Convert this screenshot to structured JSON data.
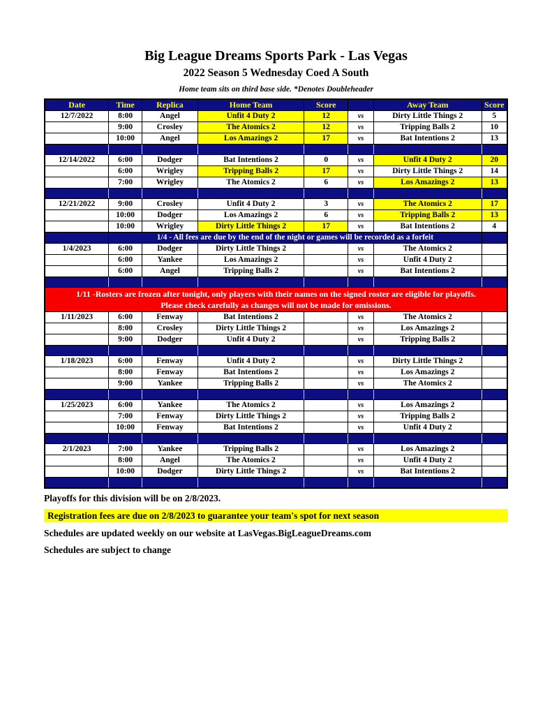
{
  "page": {
    "title": "Big League Dreams Sports Park - Las Vegas",
    "subtitle": "2022 Season 5 Wednesday Coed A South",
    "note": "Home team sits on third base side.  *Denotes Doubleheader"
  },
  "colors": {
    "navy": "#0d0d84",
    "highlight_yellow": "#ffff00",
    "banner_red": "#f80000",
    "header_text": "#ffff00",
    "note_text": "#ffffff"
  },
  "table": {
    "headers": [
      "Date",
      "Time",
      "Replica",
      "Home Team",
      "Score",
      "",
      "Away Team",
      "Score"
    ],
    "vs_label": "vs",
    "rows": [
      {
        "type": "game",
        "date": "12/7/2022",
        "time": "8:00",
        "replica": "Angel",
        "home": "Unfit 4 Duty 2",
        "hs": "12",
        "away": "Dirty Little Things 2",
        "as": "5",
        "hw": true,
        "aw": false
      },
      {
        "type": "game",
        "date": "",
        "time": "9:00",
        "replica": "Crosley",
        "home": "The Atomics 2",
        "hs": "12",
        "away": "Tripping Balls 2",
        "as": "10",
        "hw": true,
        "aw": false
      },
      {
        "type": "game",
        "date": "",
        "time": "10:00",
        "replica": "Angel",
        "home": "Los Amazings 2",
        "hs": "17",
        "away": "Bat Intentions 2",
        "as": "13",
        "hw": true,
        "aw": false
      },
      {
        "type": "separator"
      },
      {
        "type": "game",
        "date": "12/14/2022",
        "time": "6:00",
        "replica": "Dodger",
        "home": "Bat Intentions 2",
        "hs": "0",
        "away": "Unfit 4 Duty 2",
        "as": "20",
        "hw": false,
        "aw": true
      },
      {
        "type": "game",
        "date": "",
        "time": "6:00",
        "replica": "Wrigley",
        "home": "Tripping Balls 2",
        "hs": "17",
        "away": "Dirty Little Things 2",
        "as": "14",
        "hw": true,
        "aw": false
      },
      {
        "type": "game",
        "date": "",
        "time": "7:00",
        "replica": "Wrigley",
        "home": "The Atomics 2",
        "hs": "6",
        "away": "Los Amazings 2",
        "as": "13",
        "hw": false,
        "aw": true
      },
      {
        "type": "separator"
      },
      {
        "type": "game",
        "date": "12/21/2022",
        "time": "9:00",
        "replica": "Crosley",
        "home": "Unfit 4 Duty 2",
        "hs": "3",
        "away": "The Atomics 2",
        "as": "17",
        "hw": false,
        "aw": true
      },
      {
        "type": "game",
        "date": "",
        "time": "10:00",
        "replica": "Dodger",
        "home": "Los Amazings 2",
        "hs": "6",
        "away": "Tripping Balls 2",
        "as": "13",
        "hw": false,
        "aw": true
      },
      {
        "type": "game",
        "date": "",
        "time": "10:00",
        "replica": "Wrigley",
        "home": "Dirty Little Things 2",
        "hs": "17",
        "away": "Bat Intentions 2",
        "as": "4",
        "hw": true,
        "aw": false
      },
      {
        "type": "note"
      },
      {
        "type": "game",
        "date": "1/4/2023",
        "time": "6:00",
        "replica": "Dodger",
        "home": "Dirty Little Things 2",
        "hs": "",
        "away": "The Atomics 2",
        "as": "",
        "hw": false,
        "aw": false
      },
      {
        "type": "game",
        "date": "",
        "time": "6:00",
        "replica": "Yankee",
        "home": "Los Amazings 2",
        "hs": "",
        "away": "Unfit 4 Duty 2",
        "as": "",
        "hw": false,
        "aw": false
      },
      {
        "type": "game",
        "date": "",
        "time": "6:00",
        "replica": "Angel",
        "home": "Tripping Balls 2",
        "hs": "",
        "away": "Bat Intentions 2",
        "as": "",
        "hw": false,
        "aw": false
      },
      {
        "type": "separator"
      },
      {
        "type": "banner"
      },
      {
        "type": "game",
        "date": "1/11/2023",
        "time": "6:00",
        "replica": "Fenway",
        "home": "Bat Intentions 2",
        "hs": "",
        "away": "The Atomics 2",
        "as": "",
        "hw": false,
        "aw": false
      },
      {
        "type": "game",
        "date": "",
        "time": "8:00",
        "replica": "Crosley",
        "home": "Dirty Little Things 2",
        "hs": "",
        "away": "Los Amazings 2",
        "as": "",
        "hw": false,
        "aw": false
      },
      {
        "type": "game",
        "date": "",
        "time": "9:00",
        "replica": "Dodger",
        "home": "Unfit 4 Duty 2",
        "hs": "",
        "away": "Tripping Balls 2",
        "as": "",
        "hw": false,
        "aw": false
      },
      {
        "type": "separator"
      },
      {
        "type": "game",
        "date": "1/18/2023",
        "time": "6:00",
        "replica": "Fenway",
        "home": "Unfit 4 Duty 2",
        "hs": "",
        "away": "Dirty Little Things 2",
        "as": "",
        "hw": false,
        "aw": false
      },
      {
        "type": "game",
        "date": "",
        "time": "8:00",
        "replica": "Fenway",
        "home": "Bat Intentions 2",
        "hs": "",
        "away": "Los Amazings 2",
        "as": "",
        "hw": false,
        "aw": false
      },
      {
        "type": "game",
        "date": "",
        "time": "9:00",
        "replica": "Yankee",
        "home": "Tripping Balls 2",
        "hs": "",
        "away": "The Atomics 2",
        "as": "",
        "hw": false,
        "aw": false
      },
      {
        "type": "separator"
      },
      {
        "type": "game",
        "date": "1/25/2023",
        "time": "6:00",
        "replica": "Yankee",
        "home": "The Atomics 2",
        "hs": "",
        "away": "Los Amazings 2",
        "as": "",
        "hw": false,
        "aw": false
      },
      {
        "type": "game",
        "date": "",
        "time": "7:00",
        "replica": "Fenway",
        "home": "Dirty Little Things 2",
        "hs": "",
        "away": "Tripping Balls 2",
        "as": "",
        "hw": false,
        "aw": false
      },
      {
        "type": "game",
        "date": "",
        "time": "10:00",
        "replica": "Fenway",
        "home": "Bat Intentions 2",
        "hs": "",
        "away": "Unfit 4 Duty 2",
        "as": "",
        "hw": false,
        "aw": false
      },
      {
        "type": "separator"
      },
      {
        "type": "game",
        "date": "2/1/2023",
        "time": "7:00",
        "replica": "Yankee",
        "home": "Tripping Balls 2",
        "hs": "",
        "away": "Los Amazings 2",
        "as": "",
        "hw": false,
        "aw": false
      },
      {
        "type": "game",
        "date": "",
        "time": "8:00",
        "replica": "Angel",
        "home": "The Atomics 2",
        "hs": "",
        "away": "Unfit 4 Duty 2",
        "as": "",
        "hw": false,
        "aw": false
      },
      {
        "type": "game",
        "date": "",
        "time": "10:00",
        "replica": "Dodger",
        "home": "Dirty Little Things 2",
        "hs": "",
        "away": "Bat Intentions 2",
        "as": "",
        "hw": false,
        "aw": false
      },
      {
        "type": "separator"
      }
    ]
  },
  "banners": {
    "fees_note": "1/4 - All fees are due by the end of the night or games will be recorded as a forfeit",
    "roster_line1": "1/11 -Rosters are frozen after tonight, only players with their names on the signed roster are eligible for playoffs.",
    "roster_line2": "Please check carefully as changes will not be made for omissions."
  },
  "footer": {
    "playoffs": "Playoffs for this division will be on 2/8/2023.",
    "registration": "Registration fees are due on 2/8/2023 to guarantee your team's spot for next season",
    "website": "Schedules are updated weekly on our website at LasVegas.BigLeagueDreams.com",
    "subject_to_change": "Schedules are subject to change"
  }
}
